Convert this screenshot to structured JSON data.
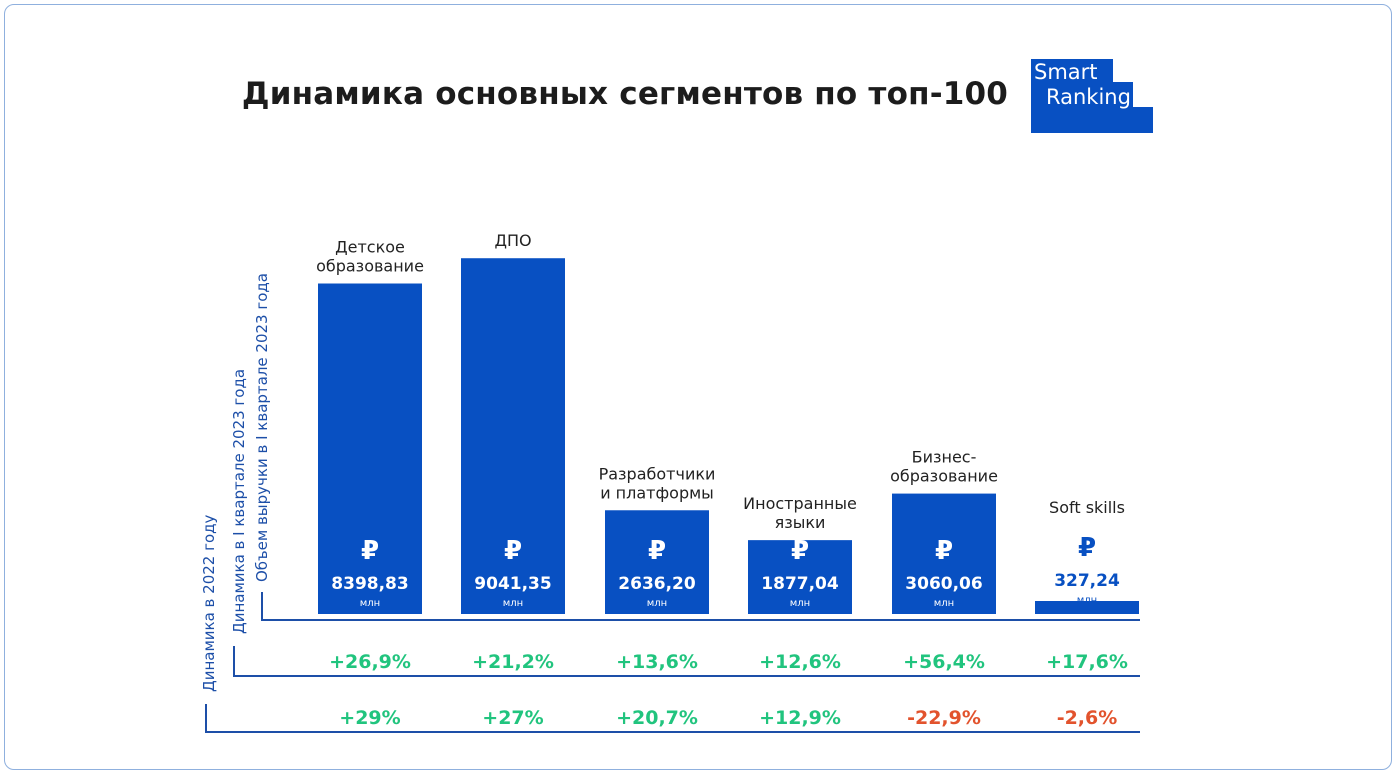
{
  "title": "Динамика основных сегментов по топ-100",
  "logo": {
    "line1": "Smart",
    "line2": "Ranking"
  },
  "colors": {
    "bar": "#0850c2",
    "axis": "#1d4fa8",
    "positive": "#21c47e",
    "negative": "#e2532d",
    "text": "#222222"
  },
  "chart_data": {
    "type": "bar",
    "title": "Динамика основных сегментов по топ-100",
    "categories": [
      "Детское образование",
      "ДПО",
      "Разработчики и платформы",
      "Иностранные языки",
      "Бизнес-образование",
      "Soft skills"
    ],
    "category_lines": [
      [
        "Детское",
        "образование"
      ],
      [
        "ДПО"
      ],
      [
        "Разработчики",
        "и платформы"
      ],
      [
        "Иностранные",
        "языки"
      ],
      [
        "Бизнес-",
        "образование"
      ],
      [
        "Soft skills"
      ]
    ],
    "currency_symbol": "₽",
    "unit": "млн",
    "series": [
      {
        "name": "Объем выручки в I квартале 2023 года",
        "values": [
          8398.83,
          9041.35,
          2636.2,
          1877.04,
          3060.06,
          327.24
        ],
        "labels": [
          "8398,83",
          "9041,35",
          "2636,20",
          "1877,04",
          "3060,06",
          "327,24"
        ]
      }
    ],
    "rows": [
      {
        "name": "Динамика в I квартале 2023 года",
        "values": [
          26.9,
          21.2,
          13.6,
          12.6,
          56.4,
          17.6
        ],
        "labels": [
          "+26,9%",
          "+21,2%",
          "+13,6%",
          "+12,6%",
          "+56,4%",
          "+17,6%"
        ]
      },
      {
        "name": "Динамика в 2022 году",
        "values": [
          29,
          27,
          20.7,
          12.9,
          -22.9,
          -2.6
        ],
        "labels": [
          "+29%",
          "+27%",
          "+20,7%",
          "+12,9%",
          "-22,9%",
          "-2,6%"
        ]
      }
    ]
  }
}
